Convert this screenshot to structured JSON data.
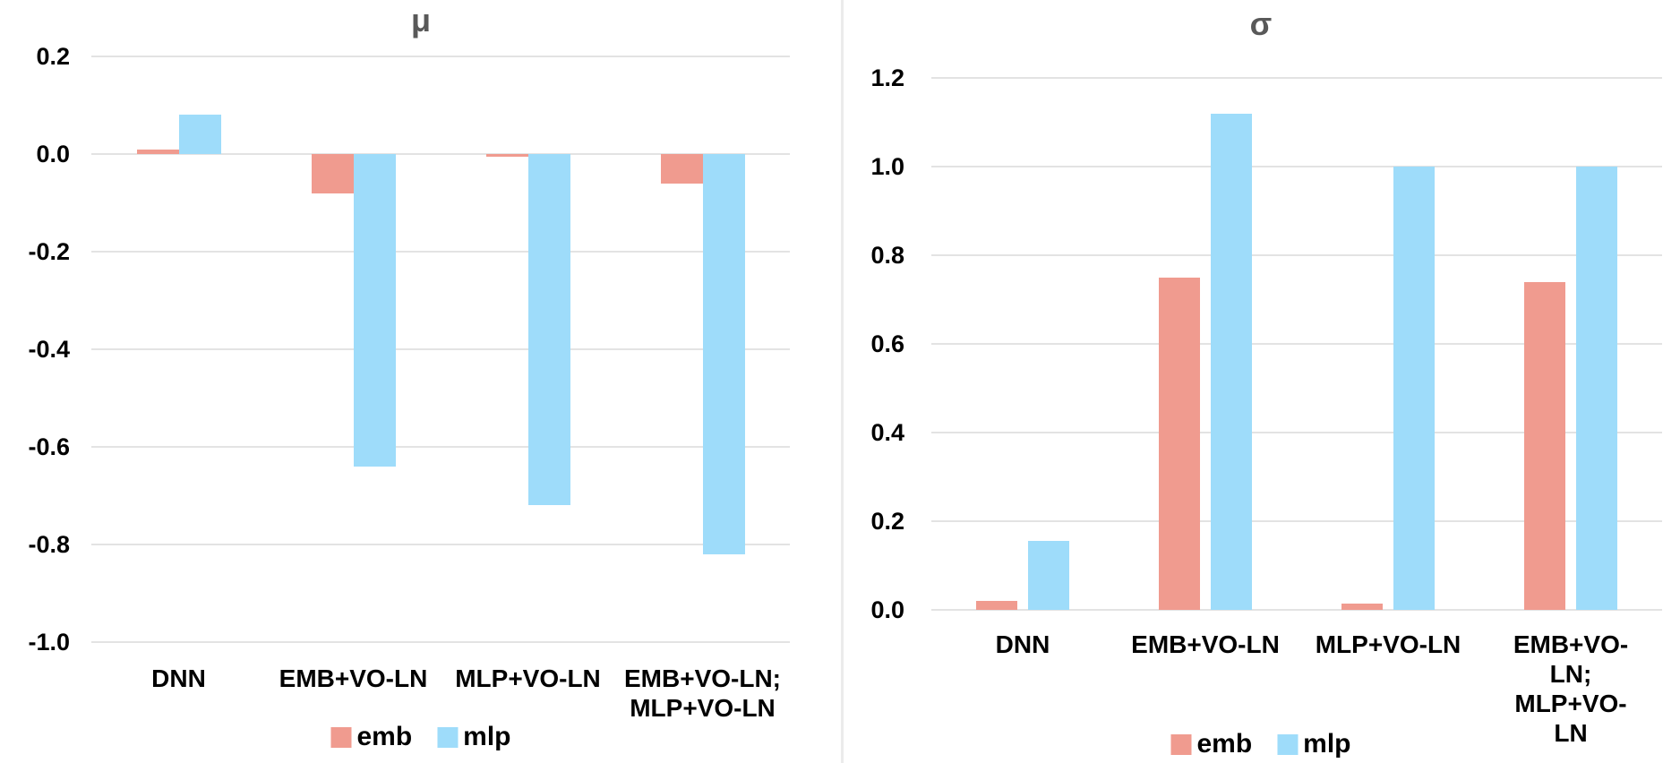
{
  "page": {
    "background_color": "#ffffff",
    "divider_color": "#ebebeb",
    "gridline_color": "#e3e3e3",
    "title_color": "#595959",
    "axis_text_color": "#000000"
  },
  "chart_data": [
    {
      "type": "bar",
      "title": "μ",
      "categories": [
        "DNN",
        "EMB+VO-LN",
        "MLP+VO-LN",
        "EMB+VO-LN;\nMLP+VO-LN"
      ],
      "series": [
        {
          "name": "emb",
          "color": "#F09B8F",
          "values": [
            0.01,
            -0.08,
            -0.005,
            -0.06
          ]
        },
        {
          "name": "mlp",
          "color": "#9EDCFA",
          "values": [
            0.08,
            -0.64,
            -0.72,
            -0.82
          ]
        }
      ],
      "yticks": [
        {
          "label": "0.2",
          "value": 0.2
        },
        {
          "label": "0.0",
          "value": 0.0
        },
        {
          "label": "-0.2",
          "value": -0.2
        },
        {
          "label": "-0.4",
          "value": -0.4
        },
        {
          "label": "-0.6",
          "value": -0.6
        },
        {
          "label": "-0.8",
          "value": -0.8
        },
        {
          "label": "-1.0",
          "value": -1.0
        }
      ],
      "ylim": [
        -1.0,
        0.2
      ],
      "grid": true,
      "legend_position": "bottom",
      "legend": [
        "emb",
        "mlp"
      ]
    },
    {
      "type": "bar",
      "title": "σ",
      "categories": [
        "DNN",
        "EMB+VO-LN",
        "MLP+VO-LN",
        "EMB+VO-LN;\nMLP+VO-LN"
      ],
      "series": [
        {
          "name": "emb",
          "color": "#F09B8F",
          "values": [
            0.02,
            0.75,
            0.015,
            0.74
          ]
        },
        {
          "name": "mlp",
          "color": "#9EDCFA",
          "values": [
            0.155,
            1.12,
            1.0,
            1.0
          ]
        }
      ],
      "yticks": [
        {
          "label": "1.2",
          "value": 1.2
        },
        {
          "label": "1.0",
          "value": 1.0
        },
        {
          "label": "0.8",
          "value": 0.8
        },
        {
          "label": "0.6",
          "value": 0.6
        },
        {
          "label": "0.4",
          "value": 0.4
        },
        {
          "label": "0.2",
          "value": 0.2
        },
        {
          "label": "0.0",
          "value": 0.0
        }
      ],
      "ylim": [
        0.0,
        1.2
      ],
      "grid": true,
      "legend_position": "bottom",
      "legend": [
        "emb",
        "mlp"
      ]
    }
  ]
}
